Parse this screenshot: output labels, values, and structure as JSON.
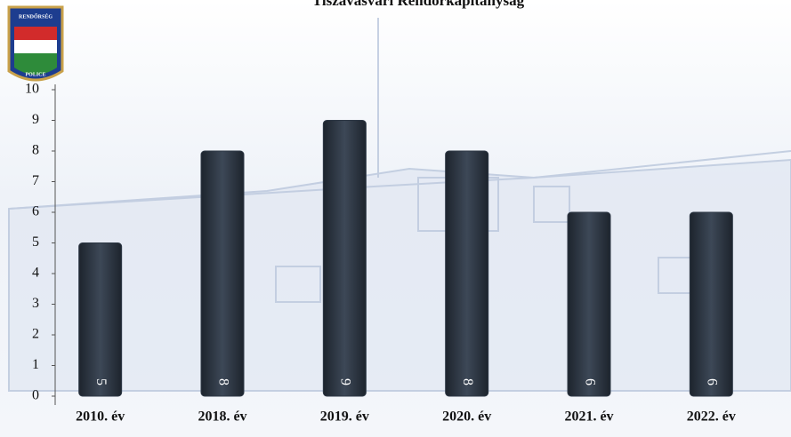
{
  "logo_text": [
    "RENDŐRSÉG",
    "POLICE"
  ],
  "chart_data": {
    "type": "bar",
    "title": "Tiszavasvári Rendőrkapitányság",
    "categories": [
      "2010. év",
      "2018. év",
      "2019. év",
      "2020. év",
      "2021. év",
      "2022. év"
    ],
    "values": [
      5,
      8,
      9,
      8,
      6,
      6
    ],
    "color": "#2e3845",
    "ylim": [
      0,
      10
    ],
    "yticks": [
      0,
      1,
      2,
      3,
      4,
      5,
      6,
      7,
      8,
      9,
      10
    ],
    "grid": false
  }
}
